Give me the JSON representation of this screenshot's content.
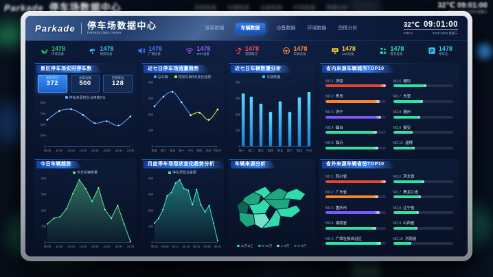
{
  "background": {
    "brand": "Parkade",
    "title": "停车场数据中心",
    "temp": "32℃",
    "time": "09:01:00",
    "sub": "PM2.5  2021/10/06 星期三",
    "nav": [
      "游客数据",
      "车辆数据",
      "设备数据",
      "环境数据",
      "舆情分析"
    ]
  },
  "header": {
    "brand": "Parkade",
    "title": "停车场数据中心",
    "subtitle": "Parkade Data Center",
    "nav": [
      {
        "label": "游客数据",
        "active": false
      },
      {
        "label": "车辆数据",
        "active": true
      },
      {
        "label": "设备数据",
        "active": false
      },
      {
        "label": "环境数据",
        "active": false
      },
      {
        "label": "舆情分析",
        "active": false
      }
    ],
    "temp": "32℃",
    "time": "09:01:00",
    "pm_label": "PM2.5",
    "date": "2021/10/06 星期三"
  },
  "stats": {
    "items": [
      {
        "icon": "seedling-icon",
        "value": "1478",
        "label": "环境设备",
        "color": "#2ecc71"
      },
      {
        "icon": "camera-icon",
        "value": "1478",
        "label": "视频设备",
        "color": "#35c1f1"
      },
      {
        "icon": "speaker-icon",
        "value": "1478",
        "label": "广播设备",
        "color": "#3d7bff"
      },
      {
        "icon": "wifi-icon",
        "value": "1478",
        "label": "WIFI设备",
        "color": "#9b59ff"
      },
      {
        "icon": "lamp-icon",
        "value": "1478",
        "label": "智慧路灯",
        "color": "#ff4d4d"
      },
      {
        "icon": "steering-wheel-icon",
        "value": "1478",
        "label": "车辆设备",
        "color": "#ff8a3d"
      },
      {
        "icon": "led-screen-icon",
        "value": "1478",
        "label": "LED设备",
        "color": "#ffd23d"
      },
      {
        "icon": "people-icon",
        "value": "1478",
        "label": "客流设备",
        "color": "#2ee6a8"
      },
      {
        "icon": "parking-icon",
        "value": "1478",
        "label": "停车位",
        "color": "#35c1f1"
      }
    ]
  },
  "panels": {
    "realtime": {
      "title": "景区停车场实时停车数",
      "boxes": [
        {
          "label": "剩余车位",
          "value": "372",
          "active": true
        },
        {
          "label": "总车位数",
          "value": "500",
          "active": false
        },
        {
          "label": "已停车位",
          "value": "128",
          "active": false
        }
      ]
    }
  },
  "chart_data": [
    {
      "id": "parking-occupancy",
      "type": "line",
      "title": "景区停车场实时停车数",
      "x": [
        "08:00",
        "10:00",
        "12:00",
        "14:00",
        "16:00",
        "18:00",
        "20:00",
        "22:00"
      ],
      "yticks": [
        "90%",
        "70%",
        "50%",
        "30%",
        "0"
      ],
      "ymax": 90,
      "series": [
        {
          "name": "停车资源时长占用率(%)",
          "color": "#5ea8ff",
          "values": [
            55,
            73,
            77,
            65,
            48,
            52,
            43,
            62
          ]
        }
      ]
    },
    {
      "id": "weekly-flow",
      "type": "line",
      "title": "近七日停车场流量趋势",
      "x": [
        "周五",
        "周六",
        "周日",
        "周一",
        "今天",
        "明天",
        "后天",
        "大后天"
      ],
      "yticks": [
        "400",
        "300",
        "200",
        "100",
        "0"
      ],
      "ymax": 400,
      "series": [
        {
          "name": "总车辆",
          "color": "#4d9fff",
          "values": [
            250,
            310,
            340,
            275,
            195,
            null,
            null,
            null
          ]
        },
        {
          "name": "预测车辆3天变化趋势",
          "color": "#cddc39",
          "values": [
            null,
            null,
            null,
            null,
            195,
            210,
            165,
            230
          ]
        }
      ]
    },
    {
      "id": "weekly-count",
      "type": "bar",
      "title": "近七日车辆数量分析",
      "x": [
        "周一",
        "周二",
        "周三",
        "周四",
        "周五",
        "周六",
        "周日",
        "今日"
      ],
      "yticks": [
        "400",
        "300",
        "200",
        "100",
        "0"
      ],
      "ymax": 400,
      "series": [
        {
          "name": "车辆数量",
          "color": "#35c1f1",
          "values": [
            330,
            310,
            265,
            215,
            280,
            215,
            305,
            340
          ]
        }
      ]
    },
    {
      "id": "province-top10",
      "type": "hbar",
      "title": "省内来源车辆城市TOP10",
      "categories": [
        "济南",
        "青岛",
        "济宁",
        "烟台",
        "临沂",
        "潍坊",
        "东营",
        "德州",
        "泰安",
        "淄博"
      ],
      "values": [
        100,
        90,
        92,
        86,
        88,
        55,
        50,
        45,
        32,
        36
      ],
      "colors": [
        "#e8432f",
        "#f8842b",
        "#7e57ff",
        "#2fe2a0",
        "#2fe2a0",
        "#2fe2a0",
        "#2fe2a0",
        "#2fe2a0",
        "#2fe2a0",
        "#2fe2a0"
      ]
    },
    {
      "id": "today-trend",
      "type": "area",
      "title": "今日车辆趋势",
      "x": [
        "08:00",
        "10:00",
        "12:00",
        "14:00",
        "16:00",
        "18:00",
        "20:00",
        "22:00"
      ],
      "yticks": [
        "400",
        "300",
        "200",
        "100",
        "0"
      ],
      "ymax": 400,
      "series": [
        {
          "name": "今日车辆数量",
          "color": "#58d68d",
          "values": [
            115,
            150,
            160,
            210,
            305,
            390,
            335,
            255,
            340,
            205,
            150,
            230,
            115,
            5
          ]
        }
      ]
    },
    {
      "id": "monthly-analysis",
      "type": "area",
      "title": "月度停车场现状变化趋势分析",
      "x": [
        "08.01",
        "08.06",
        "08.11",
        "08.16",
        "08.21",
        "08.26",
        "08.31"
      ],
      "yticks": [
        "400",
        "300",
        "200",
        "100",
        "0"
      ],
      "ymax": 400,
      "series": [
        {
          "name": "停车场营业金额",
          "color": "#35e0c0",
          "values": [
            120,
            150,
            205,
            290,
            310,
            370,
            390,
            335,
            325,
            235,
            330,
            235,
            190,
            230,
            120,
            10
          ]
        }
      ]
    },
    {
      "id": "vehicle-source-map",
      "type": "map",
      "title": "车辆来源分析",
      "legend": [
        {
          "label": "10万以上",
          "color": "#34e6b2"
        },
        {
          "label": "5~10万",
          "color": "#1fae85"
        },
        {
          "label": "1~5万",
          "color": "#7cecd1"
        },
        {
          "label": "0~1万",
          "color": "#0e6b55"
        }
      ]
    },
    {
      "id": "outside-top10",
      "type": "hbar",
      "title": "省外来源车辆省份TOP10",
      "categories": [
        "四川省",
        "广东省",
        "重庆市",
        "湖南省",
        "广西壮族自治区",
        "河北省",
        "黑龙江省",
        "辽宁省",
        "山西省",
        "河南省"
      ],
      "values": [
        100,
        88,
        90,
        85,
        92,
        52,
        46,
        43,
        40,
        30
      ],
      "colors": [
        "#e8432f",
        "#f8842b",
        "#7e57ff",
        "#2fe2a0",
        "#2fe2a0",
        "#2fe2a0",
        "#2fe2a0",
        "#2fe2a0",
        "#2fe2a0",
        "#2fe2a0"
      ]
    }
  ]
}
